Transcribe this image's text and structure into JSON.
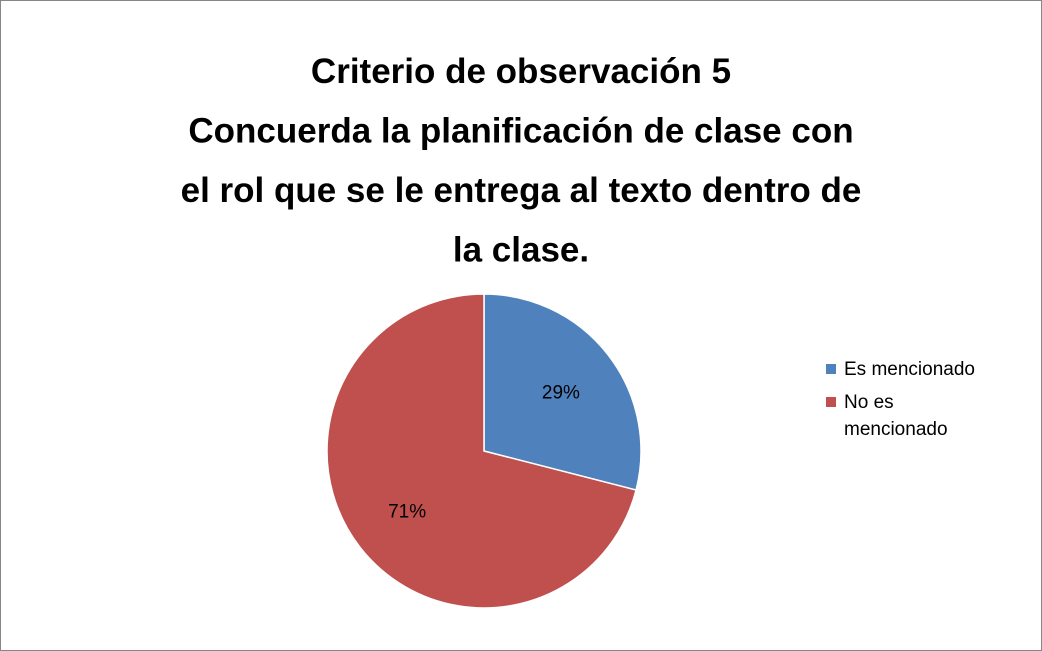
{
  "chart_data": {
    "type": "pie",
    "title": [
      "Criterio de observación 5",
      "Concuerda la planificación de clase con",
      "el rol que se le entrega al texto dentro de",
      "la clase."
    ],
    "categories": [
      "Es mencionado",
      "No es mencionado"
    ],
    "values": [
      29,
      71
    ],
    "value_labels": [
      "29%",
      "71%"
    ],
    "colors": [
      "#4f81bd",
      "#c0504d"
    ],
    "legend": "right"
  }
}
